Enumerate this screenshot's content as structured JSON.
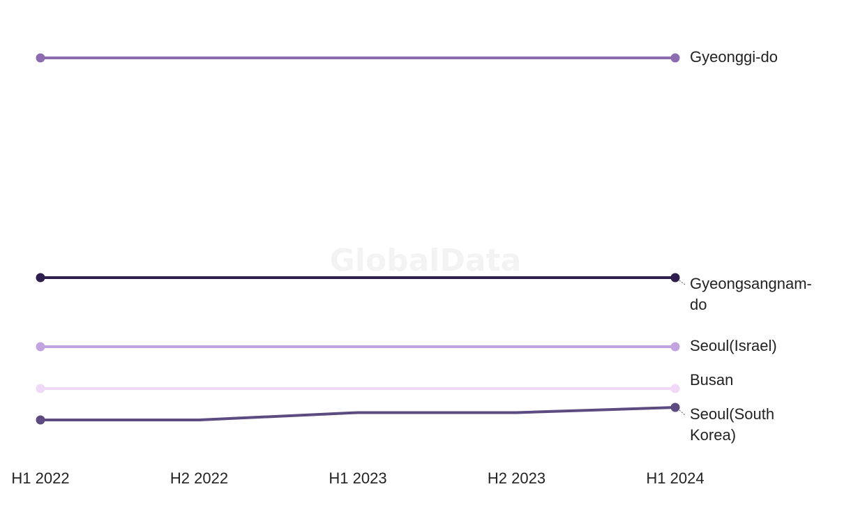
{
  "watermark": "GlobalData",
  "chart_data": {
    "type": "line",
    "title": "",
    "xlabel": "",
    "ylabel": "",
    "categories": [
      "H1 2022",
      "H2 2022",
      "H1 2023",
      "H2 2023",
      "H1 2024"
    ],
    "ylim": [
      0,
      40
    ],
    "grid": false,
    "legend": "direct labels at line ends",
    "series": [
      {
        "name": "Gyeongsangnam-do",
        "color": "#2e1f4f",
        "values": [
          17,
          17,
          17,
          17,
          17
        ],
        "label_lines": [
          "Gyeongsangnam-",
          "do"
        ]
      },
      {
        "name": "Gyeonggi-do",
        "color": "#8c6bb1",
        "values": [
          38,
          38,
          38,
          38,
          38
        ],
        "label_lines": [
          "Gyeonggi-do"
        ]
      },
      {
        "name": "Seoul(Israel)",
        "color": "#c1a3e0",
        "values": [
          10.4,
          10.4,
          10.4,
          10.4,
          10.4
        ],
        "label_lines": [
          "Seoul(Israel)"
        ]
      },
      {
        "name": "Busan",
        "color": "#efd9f7",
        "values": [
          6.4,
          6.4,
          6.4,
          6.4,
          6.4
        ],
        "label_lines": [
          "Busan"
        ]
      },
      {
        "name": "Seoul(South Korea)",
        "color": "#5d4a80",
        "values": [
          3.4,
          3.4,
          4.1,
          4.1,
          4.6
        ],
        "label_lines": [
          "Seoul(South",
          "Korea)"
        ]
      }
    ]
  }
}
